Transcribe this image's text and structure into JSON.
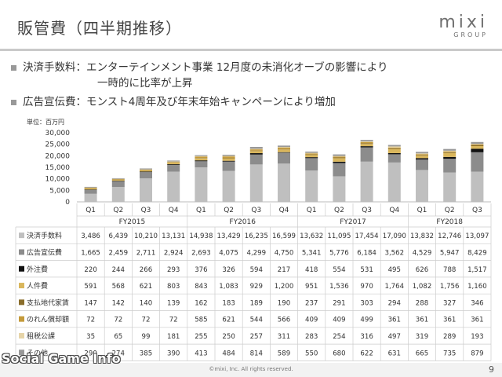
{
  "header": {
    "title": "販管費（四半期推移）",
    "logo_main": "mixi",
    "logo_sub": "GROUP"
  },
  "bullets": [
    {
      "label": "決済手数料：",
      "text": "エンターテインメント事業 12月度の未消化オーブの影響により",
      "cont": "一時的に比率が上昇"
    },
    {
      "label": "広告宣伝費：",
      "text": "モンスト4周年及び年末年始キャンペーンにより増加",
      "cont": ""
    }
  ],
  "unit_label": "単位：百万円",
  "footer": {
    "copyright": "©mixi, Inc. All rights reserved.",
    "page": "9",
    "watermark": "Social Game Info"
  },
  "chart_data": {
    "type": "bar",
    "stacked": true,
    "quarters": [
      "Q1",
      "Q2",
      "Q3",
      "Q4",
      "Q1",
      "Q2",
      "Q3",
      "Q4",
      "Q1",
      "Q2",
      "Q3",
      "Q4",
      "Q1",
      "Q2",
      "Q3"
    ],
    "fiscal_years": [
      {
        "label": "FY2015",
        "count": 4
      },
      {
        "label": "FY2016",
        "count": 4
      },
      {
        "label": "FY2017",
        "count": 4
      },
      {
        "label": "FY2018",
        "count": 3
      }
    ],
    "yticks": [
      "30,000",
      "25,000",
      "20,000",
      "15,000",
      "10,000",
      "5,000",
      "0"
    ],
    "ylim": [
      0,
      30000
    ],
    "series": [
      {
        "name": "決済手数料",
        "color": "#bfbfbf",
        "values": [
          3486,
          6439,
          10210,
          13131,
          14938,
          13429,
          16235,
          16599,
          13632,
          11095,
          17454,
          17090,
          13832,
          12746,
          13097
        ],
        "labels": [
          "3,486",
          "6,439",
          "10,210",
          "13,131",
          "14,938",
          "13,429",
          "16,235",
          "16,599",
          "13,632",
          "11,095",
          "17,454",
          "17,090",
          "13,832",
          "12,746",
          "13,097"
        ]
      },
      {
        "name": "広告宣伝費",
        "color": "#8c8c8c",
        "values": [
          1665,
          2459,
          2711,
          2924,
          2693,
          4075,
          4299,
          4750,
          5341,
          5776,
          6184,
          3562,
          4529,
          5947,
          8429
        ],
        "labels": [
          "1,665",
          "2,459",
          "2,711",
          "2,924",
          "2,693",
          "4,075",
          "4,299",
          "4,750",
          "5,341",
          "5,776",
          "6,184",
          "3,562",
          "4,529",
          "5,947",
          "8,429"
        ]
      },
      {
        "name": "外注費",
        "color": "#111111",
        "values": [
          220,
          244,
          266,
          293,
          376,
          326,
          594,
          217,
          418,
          554,
          531,
          495,
          626,
          788,
          1517
        ],
        "labels": [
          "220",
          "244",
          "266",
          "293",
          "376",
          "326",
          "594",
          "217",
          "418",
          "554",
          "531",
          "495",
          "626",
          "788",
          "1,517"
        ]
      },
      {
        "name": "人件費",
        "color": "#d9b65c",
        "values": [
          591,
          568,
          621,
          803,
          843,
          1083,
          929,
          1200,
          951,
          1536,
          970,
          1764,
          1082,
          1756,
          1160
        ],
        "labels": [
          "591",
          "568",
          "621",
          "803",
          "843",
          "1,083",
          "929",
          "1,200",
          "951",
          "1,536",
          "970",
          "1,764",
          "1,082",
          "1,756",
          "1,160"
        ]
      },
      {
        "name": "支払地代家賃",
        "color": "#8a6d2b",
        "values": [
          147,
          142,
          140,
          139,
          162,
          183,
          189,
          190,
          237,
          291,
          303,
          294,
          288,
          327,
          346
        ],
        "labels": [
          "147",
          "142",
          "140",
          "139",
          "162",
          "183",
          "189",
          "190",
          "237",
          "291",
          "303",
          "294",
          "288",
          "327",
          "346"
        ]
      },
      {
        "name": "のれん償却額",
        "color": "#c49a3a",
        "values": [
          72,
          72,
          72,
          72,
          585,
          621,
          544,
          566,
          409,
          409,
          499,
          361,
          361,
          361,
          361
        ],
        "labels": [
          "72",
          "72",
          "72",
          "72",
          "585",
          "621",
          "544",
          "566",
          "409",
          "409",
          "499",
          "361",
          "361",
          "361",
          "361"
        ]
      },
      {
        "name": "租税公課",
        "color": "#e6d4a8",
        "values": [
          35,
          65,
          99,
          181,
          255,
          250,
          257,
          311,
          283,
          254,
          316,
          497,
          319,
          289,
          193
        ],
        "labels": [
          "35",
          "65",
          "99",
          "181",
          "255",
          "250",
          "257",
          "311",
          "283",
          "254",
          "316",
          "497",
          "319",
          "289",
          "193"
        ]
      },
      {
        "name": "その他",
        "color": "#999999",
        "values": [
          290,
          274,
          385,
          390,
          413,
          484,
          814,
          589,
          550,
          680,
          622,
          631,
          665,
          735,
          879
        ],
        "labels": [
          "290",
          "274",
          "385",
          "390",
          "413",
          "484",
          "814",
          "589",
          "550",
          "680",
          "622",
          "631",
          "665",
          "735",
          "879"
        ]
      }
    ]
  }
}
